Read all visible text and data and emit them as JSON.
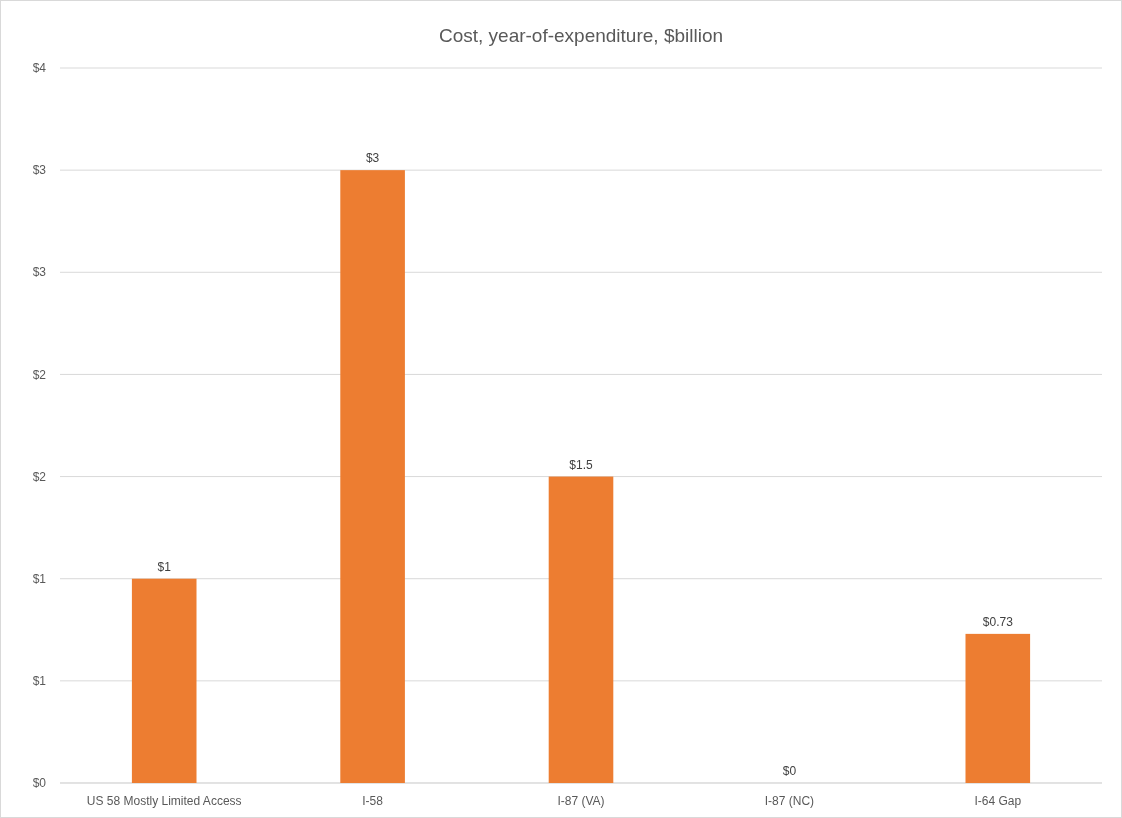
{
  "chart_data": {
    "type": "bar",
    "title": "Cost, year-of-expenditure, $billion",
    "categories": [
      "US 58 Mostly Limited Access",
      "I-58",
      "I-87 (VA)",
      "I-87 (NC)",
      "I-64 Gap"
    ],
    "values": [
      1,
      3,
      1.5,
      0,
      0.73
    ],
    "value_labels": [
      "$1",
      "$3",
      "$1.5",
      "$0",
      "$0.73"
    ],
    "color": "#ed7d31",
    "ylim": [
      0,
      3.5
    ],
    "yticks": [
      {
        "value": 0,
        "label": "$0"
      },
      {
        "value": 0.5,
        "label": "$1"
      },
      {
        "value": 1,
        "label": "$1"
      },
      {
        "value": 1.5,
        "label": "$2"
      },
      {
        "value": 2,
        "label": "$2"
      },
      {
        "value": 2.5,
        "label": "$3"
      },
      {
        "value": 3,
        "label": "$3"
      },
      {
        "value": 3.5,
        "label": "$4"
      }
    ],
    "grid": "y"
  }
}
